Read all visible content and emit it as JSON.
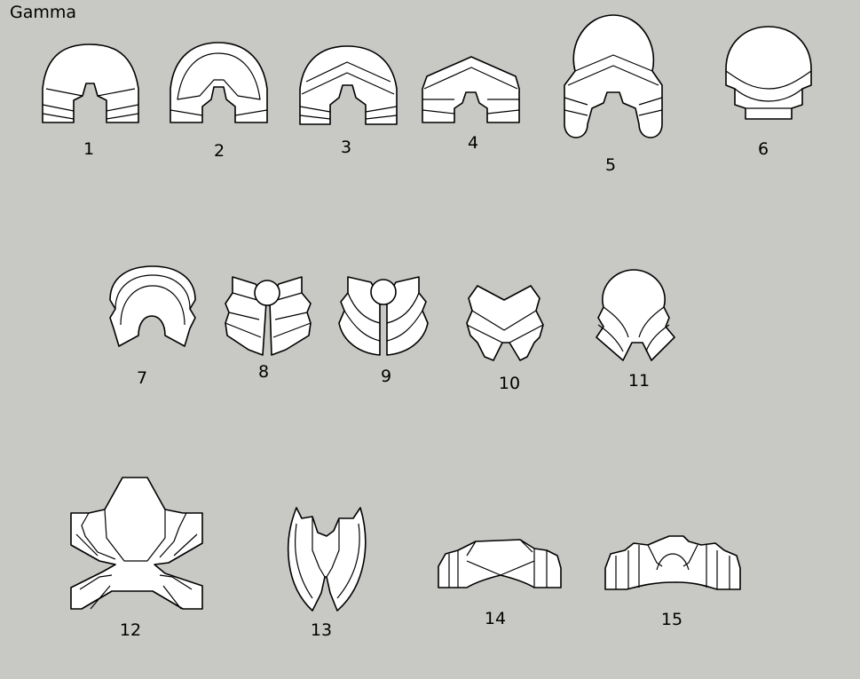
{
  "title": "Gamma",
  "shapes": [
    {
      "label": "1"
    },
    {
      "label": "2"
    },
    {
      "label": "3"
    },
    {
      "label": "4"
    },
    {
      "label": "5"
    },
    {
      "label": "6"
    },
    {
      "label": "7"
    },
    {
      "label": "8"
    },
    {
      "label": "9"
    },
    {
      "label": "10"
    },
    {
      "label": "11"
    },
    {
      "label": "12"
    },
    {
      "label": "13"
    },
    {
      "label": "14"
    },
    {
      "label": "15"
    }
  ]
}
